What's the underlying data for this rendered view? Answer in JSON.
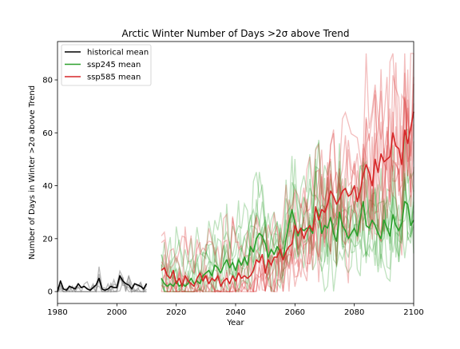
{
  "chart_data": {
    "type": "line",
    "title": "Arctic Winter Number of Days >2σ above Trend",
    "xlabel": "Year",
    "ylabel": "Number of Days in Winter >2σ above Trend",
    "xlim": [
      1980,
      2100
    ],
    "ylim": [
      -4.5,
      94.5
    ],
    "x_ticks": [
      1980,
      2000,
      2020,
      2040,
      2060,
      2080,
      2100
    ],
    "y_ticks": [
      0,
      20,
      40,
      60,
      80
    ],
    "grid": false,
    "legend_position": "top-left",
    "colors": {
      "historical": "#000000",
      "ssp245": "#2ca02c",
      "ssp585": "#d62728"
    },
    "series": [
      {
        "name": "historical mean",
        "color": "#000000",
        "x": [
          1980,
          1981,
          1982,
          1983,
          1984,
          1985,
          1986,
          1987,
          1988,
          1989,
          1990,
          1991,
          1992,
          1993,
          1994,
          1995,
          1996,
          1997,
          1998,
          1999,
          2000,
          2001,
          2002,
          2003,
          2004,
          2005,
          2006,
          2007,
          2008,
          2009,
          2010
        ],
        "values": [
          0,
          4,
          1,
          0.5,
          2,
          1.5,
          1,
          3,
          1.5,
          2,
          1,
          0.5,
          1.5,
          2.5,
          5,
          1,
          0.5,
          1,
          2,
          1.5,
          1.5,
          6,
          4,
          3,
          2.5,
          1,
          3,
          2.5,
          2,
          1,
          3
        ]
      },
      {
        "name": "ssp245 mean",
        "color": "#2ca02c",
        "x": [
          2015,
          2016,
          2017,
          2018,
          2019,
          2020,
          2021,
          2022,
          2023,
          2024,
          2025,
          2026,
          2027,
          2028,
          2029,
          2030,
          2031,
          2032,
          2033,
          2034,
          2035,
          2036,
          2037,
          2038,
          2039,
          2040,
          2041,
          2042,
          2043,
          2044,
          2045,
          2046,
          2047,
          2048,
          2049,
          2050,
          2051,
          2052,
          2053,
          2054,
          2055,
          2056,
          2057,
          2058,
          2059,
          2060,
          2061,
          2062,
          2063,
          2064,
          2065,
          2066,
          2067,
          2068,
          2069,
          2070,
          2071,
          2072,
          2073,
          2074,
          2075,
          2076,
          2077,
          2078,
          2079,
          2080,
          2081,
          2082,
          2083,
          2084,
          2085,
          2086,
          2087,
          2088,
          2089,
          2090,
          2091,
          2092,
          2093,
          2094,
          2095,
          2096,
          2097,
          2098,
          2099,
          2100
        ],
        "values": [
          5,
          3,
          2,
          3,
          2,
          4,
          2,
          3,
          2,
          3,
          5,
          3,
          4,
          3,
          6,
          7,
          8,
          6,
          10,
          9,
          7,
          10,
          12,
          9,
          11,
          8,
          12,
          10,
          13,
          10,
          17,
          15,
          20,
          22,
          21,
          18,
          13,
          16,
          14,
          17,
          15,
          12,
          20,
          26,
          31,
          26,
          21,
          24,
          23,
          24,
          24,
          22,
          32,
          29,
          22,
          25,
          24,
          28,
          22,
          19,
          30,
          25,
          23,
          20,
          22,
          24,
          21,
          28,
          34,
          25,
          24,
          27,
          25,
          22,
          20,
          27,
          24,
          21,
          29,
          25,
          23,
          26,
          34,
          33,
          25,
          27
        ]
      },
      {
        "name": "ssp585 mean",
        "color": "#d62728",
        "x": [
          2015,
          2016,
          2017,
          2018,
          2019,
          2020,
          2021,
          2022,
          2023,
          2024,
          2025,
          2026,
          2027,
          2028,
          2029,
          2030,
          2031,
          2032,
          2033,
          2034,
          2035,
          2036,
          2037,
          2038,
          2039,
          2040,
          2041,
          2042,
          2043,
          2044,
          2045,
          2046,
          2047,
          2048,
          2049,
          2050,
          2051,
          2052,
          2053,
          2054,
          2055,
          2056,
          2057,
          2058,
          2059,
          2060,
          2061,
          2062,
          2063,
          2064,
          2065,
          2066,
          2067,
          2068,
          2069,
          2070,
          2071,
          2072,
          2073,
          2074,
          2075,
          2076,
          2077,
          2078,
          2079,
          2080,
          2081,
          2082,
          2083,
          2084,
          2085,
          2086,
          2087,
          2088,
          2089,
          2090,
          2091,
          2092,
          2093,
          2094,
          2095,
          2096,
          2097,
          2098,
          2099,
          2100
        ],
        "values": [
          8,
          9,
          6,
          5,
          8,
          3,
          5,
          2,
          6,
          4,
          3,
          2,
          5,
          7,
          4,
          6,
          3,
          5,
          4,
          6,
          2,
          4,
          5,
          3,
          6,
          4,
          7,
          5,
          6,
          5,
          6,
          8,
          12,
          11,
          14,
          7,
          12,
          10,
          13,
          13,
          16,
          12,
          15,
          17,
          18,
          25,
          22,
          24,
          20,
          23,
          25,
          23,
          32,
          27,
          31,
          30,
          33,
          38,
          36,
          33,
          35,
          38,
          39,
          36,
          37,
          40,
          34,
          38,
          44,
          48,
          45,
          40,
          50,
          45,
          52,
          49,
          50,
          51,
          60,
          55,
          54,
          48,
          61,
          56,
          62,
          68
        ]
      }
    ]
  }
}
